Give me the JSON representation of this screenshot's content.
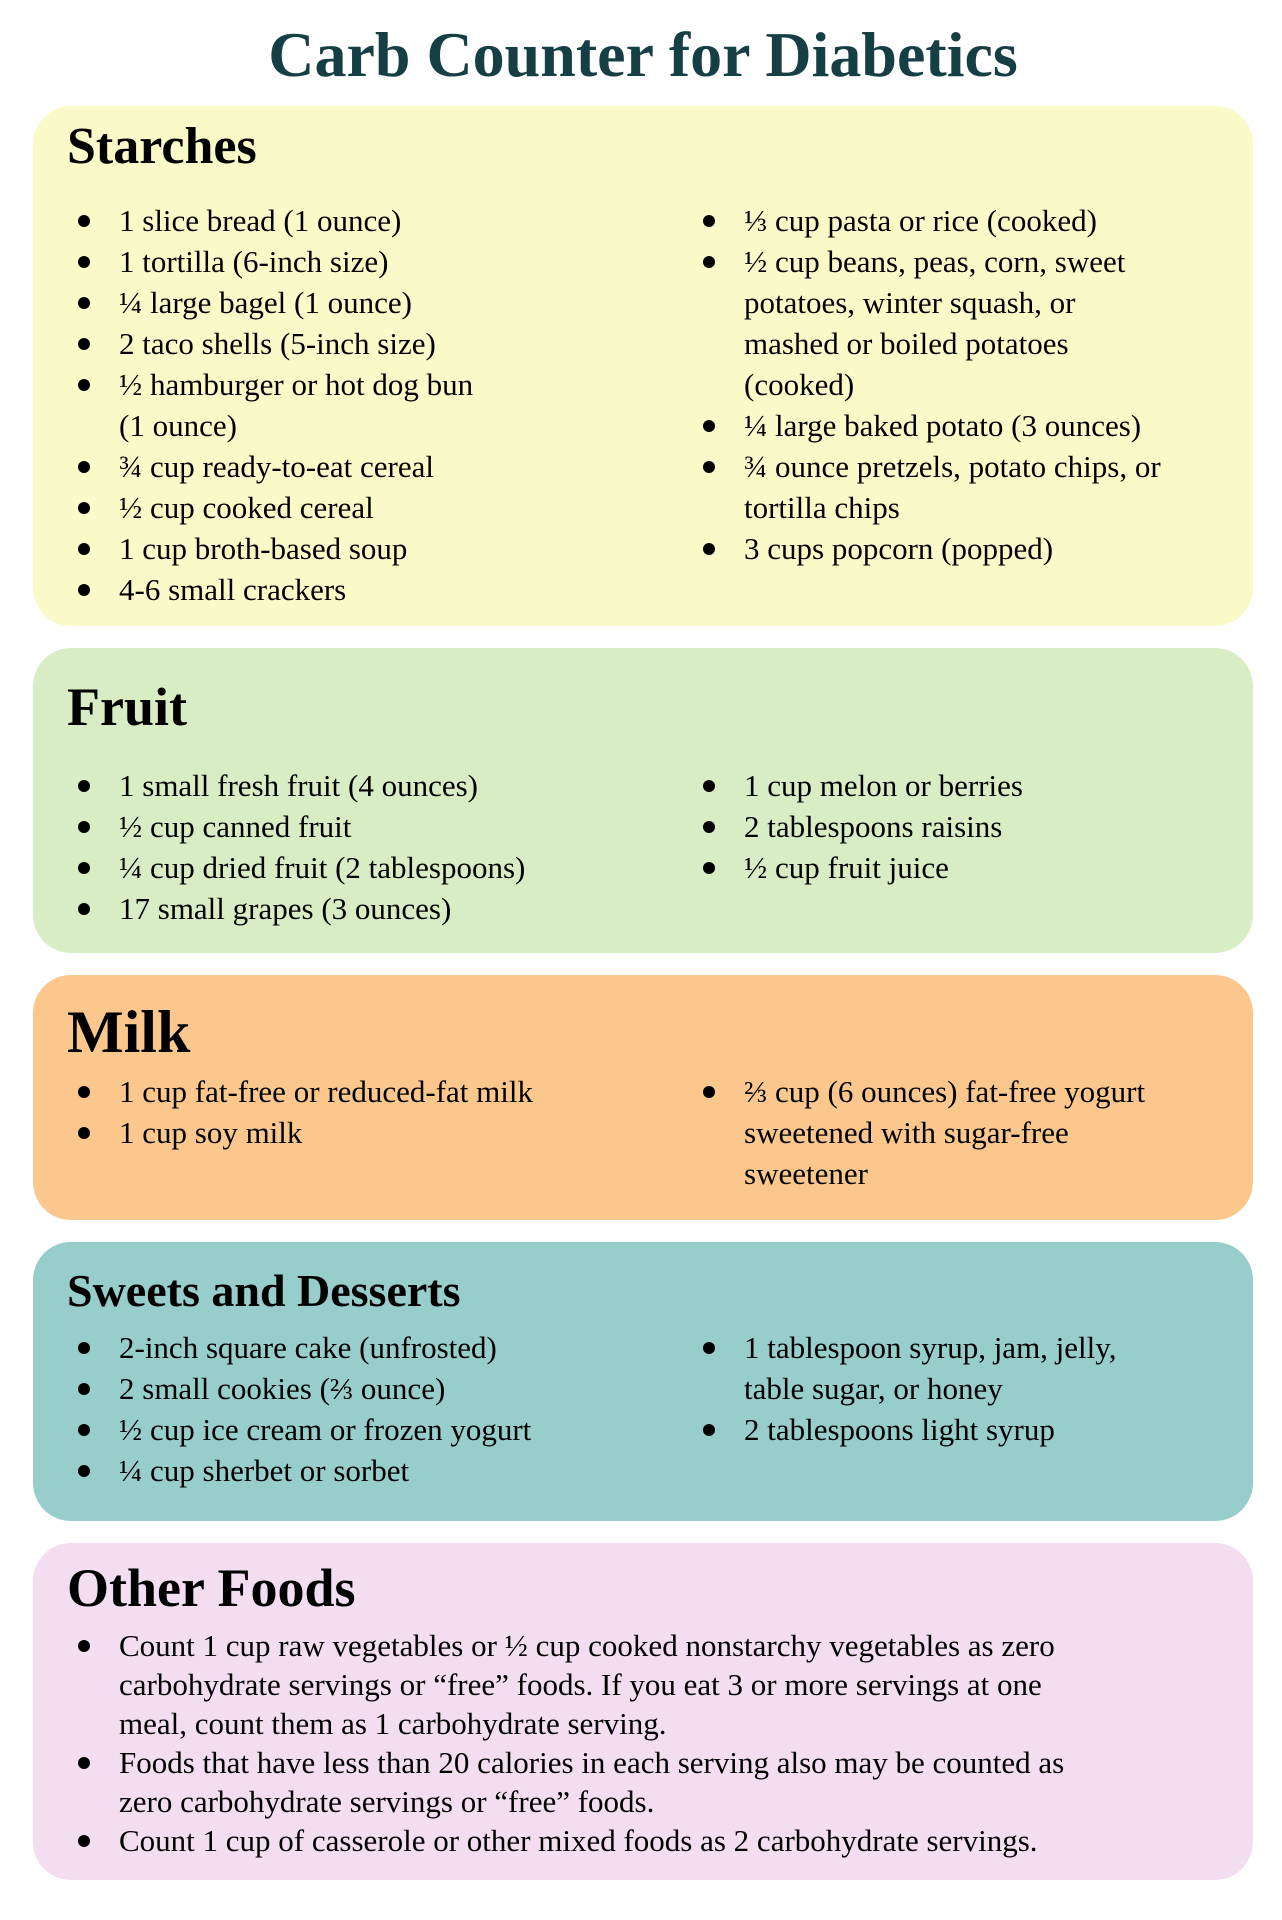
{
  "title": "Carb Counter for Diabetics",
  "colors": {
    "title_text": "#153F44",
    "starches_bg": "#FAFAC8",
    "fruit_bg": "#D9EDC5",
    "milk_bg": "#FBC78D",
    "sweets_bg": "#97CDCA",
    "other_bg": "#F2DEF0",
    "body_text": "#000000"
  },
  "sections": [
    {
      "id": "starches",
      "heading": "Starches",
      "bg": "#FAFAC8",
      "left_items": [
        "1 slice bread (1 ounce)",
        "1 tortilla (6-inch size)",
        "¼ large bagel (1 ounce)",
        "2 taco shells (5-inch size)",
        "½ hamburger or hot dog bun\n(1 ounce)",
        "¾ cup ready-to-eat cereal",
        "½ cup cooked cereal",
        "1 cup broth-based soup",
        "4-6 small crackers"
      ],
      "right_items": [
        "⅓ cup pasta or rice (cooked)",
        "½ cup beans, peas, corn, sweet\npotatoes, winter squash, or\nmashed or boiled potatoes\n(cooked)",
        "¼ large baked potato (3 ounces)",
        "¾ ounce pretzels, potato chips, or\ntortilla chips",
        "3 cups popcorn (popped)"
      ]
    },
    {
      "id": "fruit",
      "heading": "Fruit",
      "bg": "#D9EDC5",
      "left_items": [
        "1 small fresh fruit (4 ounces)",
        "½ cup canned fruit",
        "¼ cup dried fruit (2 tablespoons)",
        "17 small grapes (3 ounces)"
      ],
      "right_items": [
        "1 cup melon or berries",
        "2 tablespoons raisins",
        "½ cup fruit juice"
      ]
    },
    {
      "id": "milk",
      "heading": "Milk",
      "bg": "#FBC78D",
      "left_items": [
        "1 cup fat-free or reduced-fat milk",
        "1 cup soy milk"
      ],
      "right_items": [
        "⅔ cup (6 ounces) fat-free yogurt\nsweetened with sugar-free\nsweetener"
      ]
    },
    {
      "id": "sweets",
      "heading": "Sweets and Desserts",
      "bg": "#97CDCA",
      "left_items": [
        "2-inch square cake (unfrosted)",
        "2 small cookies (⅔ ounce)",
        "½ cup ice cream or frozen yogurt",
        "¼ cup sherbet or sorbet"
      ],
      "right_items": [
        "1 tablespoon syrup, jam, jelly,\ntable sugar, or honey",
        "2 tablespoons light syrup"
      ]
    },
    {
      "id": "other",
      "heading": "Other Foods",
      "bg": "#F2DEF0",
      "items": [
        "Count 1 cup raw vegetables or ½ cup cooked nonstarchy vegetables as zero\ncarbohydrate servings or “free” foods. If you eat 3 or more servings at one\nmeal, count them as 1 carbohydrate serving.",
        "Foods that have less than 20 calories in each serving also may be counted as\nzero carbohydrate servings or “free” foods.",
        "Count 1 cup of casserole or other mixed foods as 2 carbohydrate servings."
      ]
    }
  ]
}
